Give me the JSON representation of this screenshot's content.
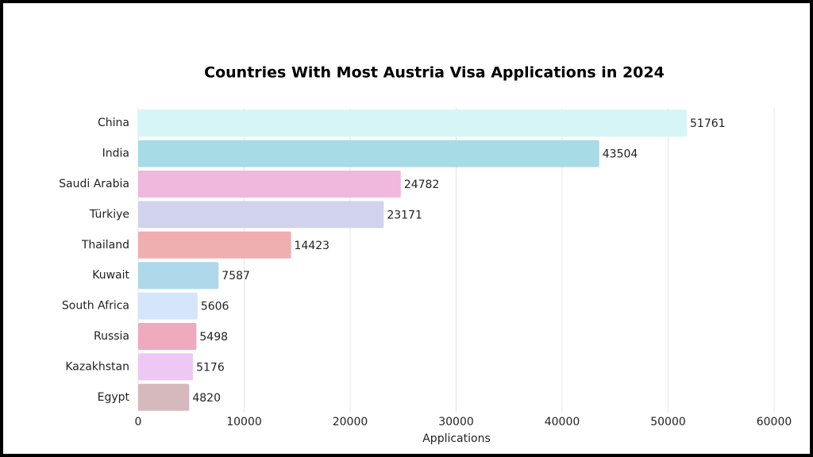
{
  "chart_data": {
    "type": "barh",
    "title": "Countries With Most Austria Visa Applications in 2024",
    "xlabel": "Applications",
    "categories": [
      "China",
      "India",
      "Saudi Arabia",
      "Türkiye",
      "Thailand",
      "Kuwait",
      "South Africa",
      "Russia",
      "Kazakhstan",
      "Egypt"
    ],
    "values": [
      51761,
      43504,
      24782,
      23171,
      14423,
      7587,
      5606,
      5498,
      5176,
      4820
    ],
    "colors": [
      "#d6f5f7",
      "#a7dbe6",
      "#f0b8dc",
      "#d1d3ed",
      "#efaeb0",
      "#afd8ea",
      "#d5e6fc",
      "#efaabe",
      "#edc8f5",
      "#d6b9bd"
    ],
    "xlim": [
      0,
      60000
    ],
    "xticks": [
      0,
      10000,
      20000,
      30000,
      40000,
      50000,
      60000
    ],
    "grid": true
  }
}
